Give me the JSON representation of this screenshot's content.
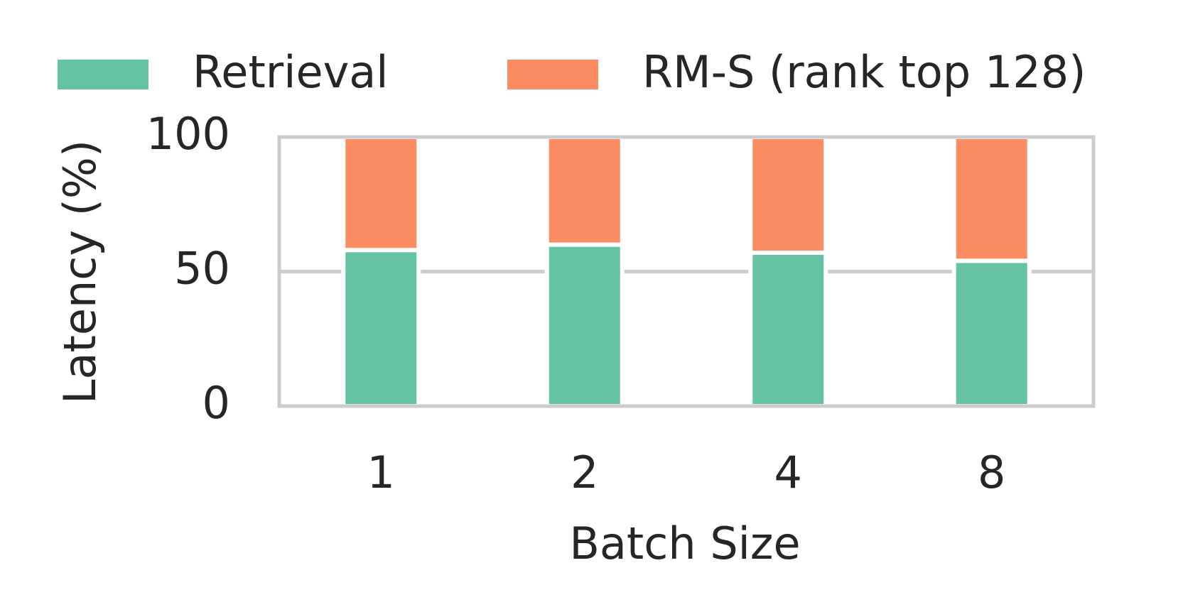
{
  "chart_data": {
    "type": "stacked_bar",
    "categories": [
      "1",
      "2",
      "4",
      "8"
    ],
    "series": [
      {
        "name": "Retrieval",
        "color": "#66c2a5",
        "values": [
          58,
          60,
          57,
          54
        ]
      },
      {
        "name": "RM-S (rank top 128)",
        "color": "#fc8d62",
        "values": [
          42,
          40,
          43,
          46
        ]
      }
    ],
    "x_label": "Batch Size",
    "y_label": "Latency (%)",
    "ylim": [
      0,
      100
    ],
    "yticks": [
      0,
      50,
      100
    ],
    "grid": true,
    "legend": "top"
  }
}
